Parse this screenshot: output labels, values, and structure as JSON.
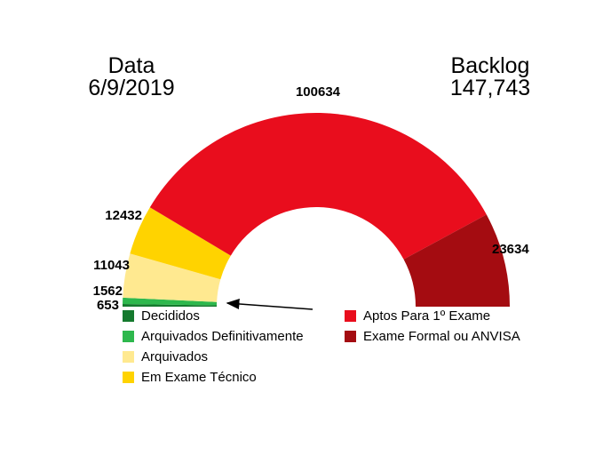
{
  "header": {
    "date_label": "Data",
    "date_value": "6/9/2019",
    "backlog_label": "Backlog",
    "backlog_value": "147,743"
  },
  "chart_data": {
    "type": "pie",
    "variant": "half-donut-gauge",
    "start_angle_deg": 180,
    "end_angle_deg": 0,
    "legend_position": "bottom",
    "segments": [
      {
        "label": "Decididos",
        "value": 653,
        "color": "#157a2e"
      },
      {
        "label": "Arquivados Definitivamente",
        "value": 1562,
        "color": "#2eb84d"
      },
      {
        "label": "Arquivados",
        "value": 11043,
        "color": "#ffe990"
      },
      {
        "label": "Em Exame Técnico",
        "value": 12432,
        "color": "#ffd300"
      },
      {
        "label": "Aptos Para 1º Exame",
        "value": 100634,
        "color": "#e90d1d"
      },
      {
        "label": "Exame Formal ou ANVISA",
        "value": 23634,
        "color": "#a40c11"
      }
    ]
  }
}
